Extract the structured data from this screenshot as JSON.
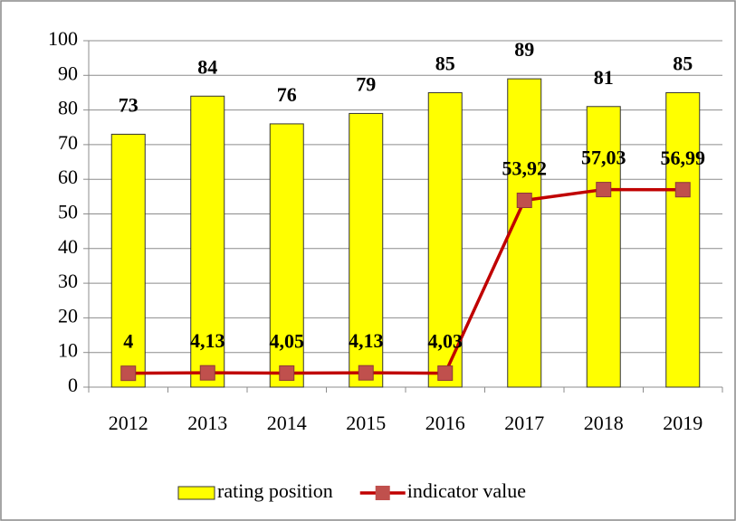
{
  "chart_data": {
    "type": "bar",
    "categories": [
      "2012",
      "2013",
      "2014",
      "2015",
      "2016",
      "2017",
      "2018",
      "2019"
    ],
    "series": [
      {
        "name": "rating position",
        "type": "bar",
        "color": "#ffff00",
        "values": [
          73,
          84,
          76,
          79,
          85,
          89,
          81,
          85
        ]
      },
      {
        "name": "indicator value",
        "type": "line",
        "color": "#c00000",
        "marker_color": "#c0504d",
        "values": [
          4,
          4.13,
          4.05,
          4.13,
          4.03,
          53.92,
          57.03,
          56.99
        ],
        "value_labels": [
          "4",
          "4,13",
          "4,05",
          "4,13",
          "4,03",
          "53,92",
          "57,03",
          "56,99"
        ]
      }
    ],
    "ylim": [
      0,
      100
    ],
    "yticks": [
      0,
      10,
      20,
      30,
      40,
      50,
      60,
      70,
      80,
      90,
      100
    ],
    "grid": true,
    "legend": "bottom"
  }
}
